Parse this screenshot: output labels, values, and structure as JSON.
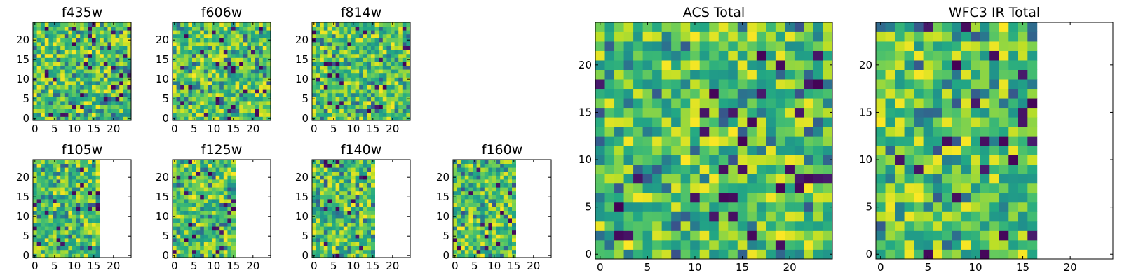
{
  "colormap": "viridis",
  "chart_data": [
    {
      "type": "heatmap",
      "title": "f435w",
      "grid": {
        "width": 25,
        "height": 25
      },
      "xlim": [
        0,
        25
      ],
      "ylim": [
        0,
        25
      ],
      "xticks": [
        "0",
        "5",
        "10",
        "15",
        "20"
      ],
      "yticks": [
        "0",
        "5",
        "10",
        "15",
        "20"
      ],
      "coverage_width": 25
    },
    {
      "type": "heatmap",
      "title": "f606w",
      "grid": {
        "width": 25,
        "height": 25
      },
      "xlim": [
        0,
        25
      ],
      "ylim": [
        0,
        25
      ],
      "xticks": [
        "0",
        "5",
        "10",
        "15",
        "20"
      ],
      "yticks": [
        "0",
        "5",
        "10",
        "15",
        "20"
      ],
      "coverage_width": 25
    },
    {
      "type": "heatmap",
      "title": "f814w",
      "grid": {
        "width": 25,
        "height": 25
      },
      "xlim": [
        0,
        25
      ],
      "ylim": [
        0,
        25
      ],
      "xticks": [
        "0",
        "5",
        "10",
        "15",
        "20"
      ],
      "yticks": [
        "0",
        "5",
        "10",
        "15",
        "20"
      ],
      "coverage_width": 25
    },
    {
      "type": "heatmap",
      "title": "f105w",
      "grid": {
        "width": 25,
        "height": 25
      },
      "xlim": [
        0,
        25
      ],
      "ylim": [
        0,
        25
      ],
      "xticks": [
        "0",
        "5",
        "10",
        "15",
        "20"
      ],
      "yticks": [
        "0",
        "5",
        "10",
        "15",
        "20"
      ],
      "coverage_width": 17
    },
    {
      "type": "heatmap",
      "title": "f125w",
      "grid": {
        "width": 25,
        "height": 25
      },
      "xlim": [
        0,
        25
      ],
      "ylim": [
        0,
        25
      ],
      "xticks": [
        "0",
        "5",
        "10",
        "15",
        "20"
      ],
      "yticks": [
        "0",
        "5",
        "10",
        "15",
        "20"
      ],
      "coverage_width": 16
    },
    {
      "type": "heatmap",
      "title": "f140w",
      "grid": {
        "width": 25,
        "height": 25
      },
      "xlim": [
        0,
        25
      ],
      "ylim": [
        0,
        25
      ],
      "xticks": [
        "0",
        "5",
        "10",
        "15",
        "20"
      ],
      "yticks": [
        "0",
        "5",
        "10",
        "15",
        "20"
      ],
      "coverage_width": 16
    },
    {
      "type": "heatmap",
      "title": "f160w",
      "grid": {
        "width": 25,
        "height": 25
      },
      "xlim": [
        0,
        25
      ],
      "ylim": [
        0,
        25
      ],
      "xticks": [
        "0",
        "5",
        "10",
        "15",
        "20"
      ],
      "yticks": [
        "0",
        "5",
        "10",
        "15",
        "20"
      ],
      "coverage_width": 16
    },
    {
      "type": "heatmap",
      "title": "ACS Total",
      "grid": {
        "width": 25,
        "height": 25
      },
      "xlim": [
        0,
        25
      ],
      "ylim": [
        0,
        25
      ],
      "xticks": [
        "0",
        "5",
        "10",
        "15",
        "20"
      ],
      "yticks": [
        "0",
        "5",
        "10",
        "15",
        "20"
      ],
      "coverage_width": 25
    },
    {
      "type": "heatmap",
      "title": "WFC3 IR Total",
      "grid": {
        "width": 25,
        "height": 25
      },
      "xlim": [
        0,
        25
      ],
      "ylim": [
        0,
        25
      ],
      "xticks": [
        "0",
        "5",
        "10",
        "15",
        "20"
      ],
      "yticks": [
        "0",
        "5",
        "10",
        "15",
        "20"
      ],
      "coverage_width": 17
    }
  ]
}
